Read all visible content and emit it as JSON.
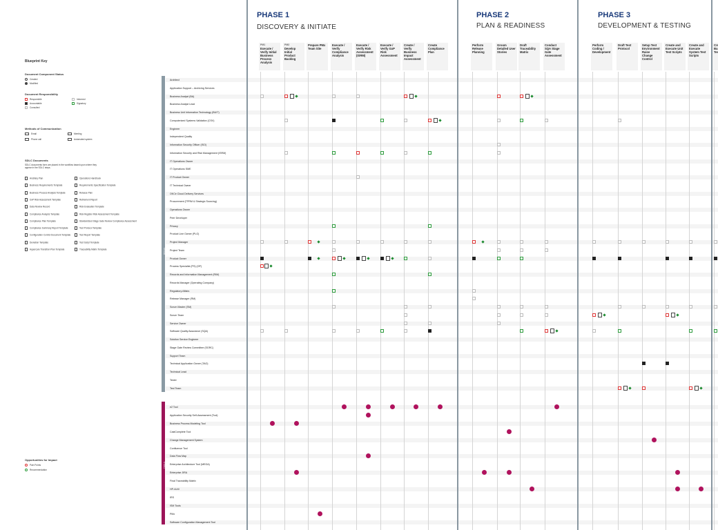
{
  "key": {
    "title": "Blueprint Key",
    "status_head": "Document Component Status",
    "status_items": [
      "Created",
      "Modified"
    ],
    "resp_head": "Document Responsibility",
    "resp_items": [
      "Responsible",
      "Informed",
      "Accountable",
      "Signatory",
      "Consulted"
    ],
    "comm_head": "Methods of Communication",
    "comm_items": [
      "Email",
      "Meeting",
      "Phone call",
      "Automated system"
    ],
    "sdlc_head": "SDLC Documents",
    "sdlc_desc": "SDLC documents form are placed in the workflow based upon where they appear in the SDLC steps.",
    "sdlc_docs_left": [
      "Ancillary Plan",
      "Business Requirements Template",
      "Business Process Analysis Template",
      "GxP Risk Assessment Template",
      "Data Review Record",
      "Compliance Analysis Template",
      "Compliance Plan Template",
      "Compliance Summary Report Template",
      "Configuration Control Document Template",
      "Deviation Template",
      "Hypercare Transition Plan Template"
    ],
    "sdlc_docs_right": [
      "Operations Handbook",
      "Requirements Specification Template",
      "Release Plan",
      "Retirement Report",
      "Risk Evaluation Template",
      "Risk Register Risk Assessment Template",
      "Standardized Stage Gate Review Compliance Assessment",
      "Test Protocol Template",
      "Test Report Template",
      "Test Script Template",
      "Traceability Matrix Template"
    ],
    "opp_head": "Opportunities for Impact",
    "opp_items": [
      "Pain Points",
      "Recommendation"
    ]
  },
  "phases": [
    {
      "num": "PHASE 1",
      "name": "DISCOVERY & INITIATE"
    },
    {
      "num": "PHASE 2",
      "name": "PLAN & READINESS"
    },
    {
      "num": "PHASE 3",
      "name": "DEVELOPMENT & TESTING"
    }
  ],
  "columns": [
    {
      "pre": "PM1",
      "label": "Execute / Verify Initial Business Process Analysis"
    },
    {
      "pre": "PM2",
      "label": "Develop Initial Product Backlog"
    },
    {
      "pre": "",
      "label": "Prepare PMx Team Site"
    },
    {
      "pre": "",
      "label": "Execute / Verify Compliance Analysis"
    },
    {
      "pre": "",
      "label": "Execute / Verify Risk Assessment (ISRM)"
    },
    {
      "pre": "",
      "label": "Execute / Verify GxP Risk Assessment"
    },
    {
      "pre": "",
      "label": "Create / Verify Business Impact Assessment"
    },
    {
      "pre": "",
      "label": "Create Compliance Plan"
    },
    {
      "pre": "",
      "label": "Perform Release Planning"
    },
    {
      "pre": "",
      "label": "Groom Detailed User Stories"
    },
    {
      "pre": "",
      "label": "Draft Traceability Matrix"
    },
    {
      "pre": "",
      "label": "Conduct SQA Stage Gate Assessment"
    },
    {
      "pre": "",
      "label": "Perform Coding / Development"
    },
    {
      "pre": "",
      "label": "Draft Test Protocol"
    },
    {
      "pre": "",
      "label": "Setup Test Environment Raise Change Control"
    },
    {
      "pre": "",
      "label": "Create and Execute Unit Test Scripts"
    },
    {
      "pre": "",
      "label": "Create and Execute System Test Scripts"
    },
    {
      "pre": "",
      "label": "Create Business Test"
    }
  ],
  "roles_group": "ROLES",
  "roles": [
    "Architect",
    "Application Support – Archiving Services",
    "Business Analyst (BA)",
    "Business Analyst Lead",
    "Business Unit Information Technology (BUIT)",
    "Computerized Systems Validation (CSV)",
    "Engineer",
    "Independent Quality",
    "Information Security Officer (ISO)",
    "Information Security and Risk Management (ISRM)",
    "IT Operations Owner",
    "IT Operations SME",
    "IT Product Owner",
    "IT Technical Owner",
    "OKCe Cloud Delivery Services",
    "Procurement (TPRM & Strategic Sourcing)",
    "Operations Owner",
    "Peer Developer",
    "Privacy",
    "Product Line Owner (PLO)",
    "Project Manager",
    "Project Team",
    "Product Owner",
    "Process Specialist (PS) (OP)",
    "Records and Information Management (RIM)",
    "Records Manager (Operating Company)",
    "Regulatory Affairs",
    "Release Manager (RM)",
    "Scrum Master (SM)",
    "Scrum Team",
    "Service Owner",
    "Software Quality Assurance (SQA)",
    "Solution Service Engineer",
    "Stage Gate Review Committee (SGRC)",
    "Support Team",
    "Technical Application Owner (TAO)",
    "Technical Lead",
    "Tester",
    "Test Team"
  ],
  "tools_group": "TOOLS",
  "tools": [
    "e2 Tool",
    "Application Security Self-Assessment (Tool)",
    "Business Process Modeling Tool",
    "CastComplete Tool",
    "Change Management System",
    "Confluence Tool",
    "Data Flow Map",
    "Enterprise Architecture Tool (MEGA)",
    "Enterprise JIRA",
    "Final Traceability Matrix",
    "HP-ALM",
    "IRS",
    "ISM Tools",
    "PMx",
    "Software Configuration Management Tool"
  ],
  "colors": {
    "phase": "#1a3a7a",
    "roles_bar": "#8a9aa4",
    "tools_bar": "#9c1458",
    "tool_dot": "#b0125d",
    "responsible": "#dd3333",
    "signatory": "#2a9a3a",
    "recommendation": "#1b8a2e"
  }
}
